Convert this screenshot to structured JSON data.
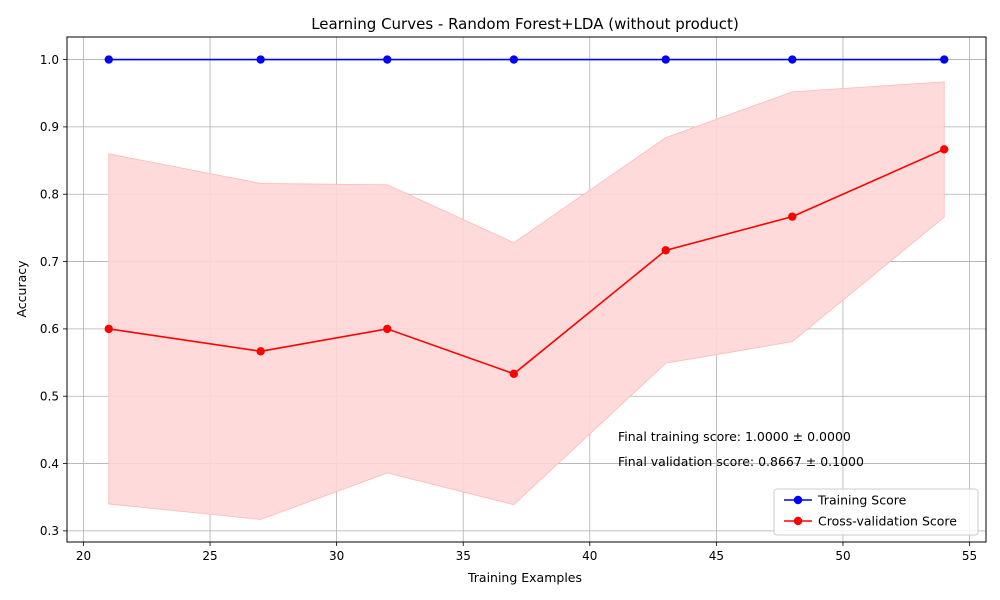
{
  "chart_data": {
    "type": "line",
    "title": "Learning Curves - Random Forest+LDA (without product)",
    "xlabel": "Training Examples",
    "ylabel": "Accuracy",
    "xlim": [
      19.35,
      55.65
    ],
    "ylim": [
      0.2835,
      1.0335
    ],
    "xticks": [
      20,
      25,
      30,
      35,
      40,
      45,
      50,
      55
    ],
    "yticks": [
      0.3,
      0.4,
      0.5,
      0.6,
      0.7,
      0.8,
      0.9,
      1.0
    ],
    "grid": true,
    "x": [
      21,
      27,
      32,
      37,
      43,
      48,
      54
    ],
    "series": [
      {
        "name": "Training Score",
        "color": "#0000ff",
        "values": [
          1.0,
          1.0,
          1.0,
          1.0,
          1.0,
          1.0,
          1.0
        ],
        "band_lower": [
          1.0,
          1.0,
          1.0,
          1.0,
          1.0,
          1.0,
          1.0
        ],
        "band_upper": [
          1.0,
          1.0,
          1.0,
          1.0,
          1.0,
          1.0,
          1.0
        ]
      },
      {
        "name": "Cross-validation Score",
        "color": "#ff0000",
        "band_color": "#ffd6d6",
        "values": [
          0.6,
          0.5667,
          0.6,
          0.5333,
          0.7167,
          0.7667,
          0.8667
        ],
        "band_lower": [
          0.34,
          0.317,
          0.386,
          0.339,
          0.549,
          0.581,
          0.766
        ],
        "band_upper": [
          0.86,
          0.816,
          0.814,
          0.728,
          0.884,
          0.952,
          0.967
        ]
      }
    ],
    "annotations": [
      "Final training score: 1.0000 ± 0.0000",
      "Final validation score: 0.8667 ± 0.1000"
    ],
    "legend_position": "bottom-right"
  }
}
